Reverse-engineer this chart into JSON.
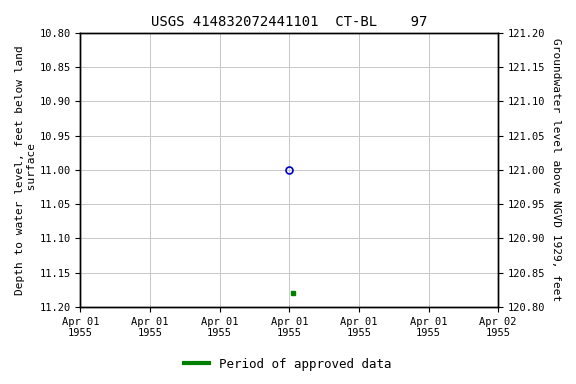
{
  "title": "USGS 414832072441101  CT-BL    97",
  "left_ylabel": "Depth to water level, feet below land\n surface",
  "right_ylabel": "Groundwater level above NGVD 1929, feet",
  "ylim_left_top": 10.8,
  "ylim_left_bottom": 11.2,
  "ylim_right_top": 121.2,
  "ylim_right_bottom": 120.8,
  "xlim": [
    0,
    6
  ],
  "xtick_positions": [
    0,
    1,
    2,
    3,
    4,
    5,
    6
  ],
  "xtick_labels": [
    "Apr 01\n1955",
    "Apr 01\n1955",
    "Apr 01\n1955",
    "Apr 01\n1955",
    "Apr 01\n1955",
    "Apr 01\n1955",
    "Apr 02\n1955"
  ],
  "yticks_left": [
    10.8,
    10.85,
    10.9,
    10.95,
    11.0,
    11.05,
    11.1,
    11.15,
    11.2
  ],
  "ytick_labels_left": [
    "10.80",
    "10.85",
    "10.90",
    "10.95",
    "11.00",
    "11.05",
    "11.10",
    "11.15",
    "11.20"
  ],
  "yticks_right_positions": [
    10.8,
    10.85,
    10.9,
    10.95,
    11.0,
    11.05,
    11.1,
    11.15,
    11.2
  ],
  "ytick_labels_right": [
    "121.20",
    "121.15",
    "121.10",
    "121.05",
    "121.00",
    "120.95",
    "120.90",
    "120.85",
    "120.80"
  ],
  "point1_x": 3.0,
  "point1_y": 11.0,
  "point1_color": "#0000cc",
  "point2_x": 3.05,
  "point2_y": 11.18,
  "point2_color": "#008000",
  "legend_label": "Period of approved data",
  "legend_color": "#008000",
  "bg_color": "#ffffff",
  "grid_color": "#c8c8c8",
  "title_fontsize": 10,
  "axis_label_fontsize": 8,
  "tick_fontsize": 7.5,
  "legend_fontsize": 9
}
